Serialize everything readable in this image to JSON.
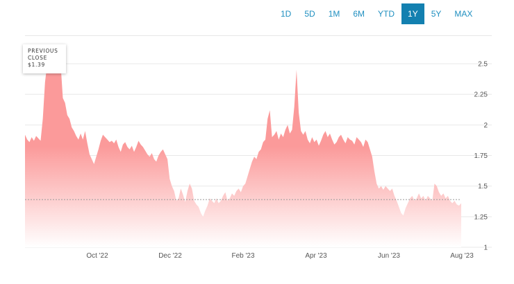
{
  "range_selector": {
    "buttons": [
      "1D",
      "5D",
      "1M",
      "6M",
      "YTD",
      "1Y",
      "5Y",
      "MAX"
    ],
    "active": "1Y"
  },
  "tooltip": {
    "line1": "PREVIOUS",
    "line2": "CLOSE",
    "line3": "$1.39"
  },
  "colors": {
    "fill_top": "#fb9a9a",
    "fill_bottom": "#ffffff",
    "accent": "#1380b0"
  },
  "chart_data": {
    "type": "area",
    "y_ticks": [
      "2.5",
      "2.25",
      "2",
      "1.75",
      "1.5",
      "1.25",
      "1"
    ],
    "ylim": [
      1,
      2.5
    ],
    "x_ticks": [
      "Oct '22",
      "Dec '22",
      "Feb '23",
      "Apr '23",
      "Jun '23",
      "Aug '23"
    ],
    "previous_close": 1.39,
    "grid": true,
    "series": [
      {
        "values": [
          1.92,
          1.88,
          1.86,
          1.9,
          1.87,
          1.91,
          1.89,
          1.87,
          2.05,
          2.35,
          2.5,
          2.5,
          2.5,
          2.45,
          2.5,
          2.5,
          2.5,
          2.22,
          2.18,
          2.08,
          2.05,
          1.98,
          1.95,
          1.91,
          1.88,
          1.93,
          1.88,
          1.95,
          1.85,
          1.76,
          1.72,
          1.68,
          1.74,
          1.8,
          1.87,
          1.92,
          1.9,
          1.88,
          1.86,
          1.87,
          1.85,
          1.88,
          1.82,
          1.78,
          1.84,
          1.86,
          1.82,
          1.8,
          1.83,
          1.78,
          1.82,
          1.87,
          1.84,
          1.82,
          1.79,
          1.76,
          1.74,
          1.77,
          1.72,
          1.7,
          1.75,
          1.78,
          1.8,
          1.76,
          1.72,
          1.56,
          1.5,
          1.46,
          1.38,
          1.4,
          1.48,
          1.43,
          1.37,
          1.46,
          1.52,
          1.48,
          1.38,
          1.35,
          1.33,
          1.28,
          1.25,
          1.3,
          1.34,
          1.4,
          1.38,
          1.36,
          1.4,
          1.36,
          1.38,
          1.42,
          1.45,
          1.38,
          1.4,
          1.44,
          1.42,
          1.46,
          1.48,
          1.45,
          1.5,
          1.52,
          1.58,
          1.64,
          1.7,
          1.74,
          1.72,
          1.78,
          1.8,
          1.86,
          1.88,
          2.05,
          2.12,
          1.9,
          1.92,
          1.95,
          1.88,
          1.93,
          1.9,
          1.96,
          2.0,
          1.93,
          1.96,
          2.15,
          2.45,
          2.1,
          1.95,
          1.92,
          1.95,
          1.88,
          1.85,
          1.9,
          1.86,
          1.88,
          1.83,
          1.87,
          1.92,
          1.95,
          1.9,
          1.93,
          1.88,
          1.84,
          1.86,
          1.9,
          1.92,
          1.88,
          1.85,
          1.9,
          1.88,
          1.87,
          1.84,
          1.9,
          1.88,
          1.86,
          1.82,
          1.88,
          1.86,
          1.8,
          1.74,
          1.62,
          1.52,
          1.48,
          1.5,
          1.47,
          1.5,
          1.48,
          1.46,
          1.48,
          1.42,
          1.38,
          1.33,
          1.28,
          1.26,
          1.32,
          1.36,
          1.4,
          1.42,
          1.38,
          1.4,
          1.44,
          1.4,
          1.42,
          1.38,
          1.42,
          1.4,
          1.38,
          1.52,
          1.5,
          1.45,
          1.42,
          1.44,
          1.4,
          1.42,
          1.38,
          1.36,
          1.38,
          1.35,
          1.34,
          1.36
        ]
      }
    ]
  }
}
